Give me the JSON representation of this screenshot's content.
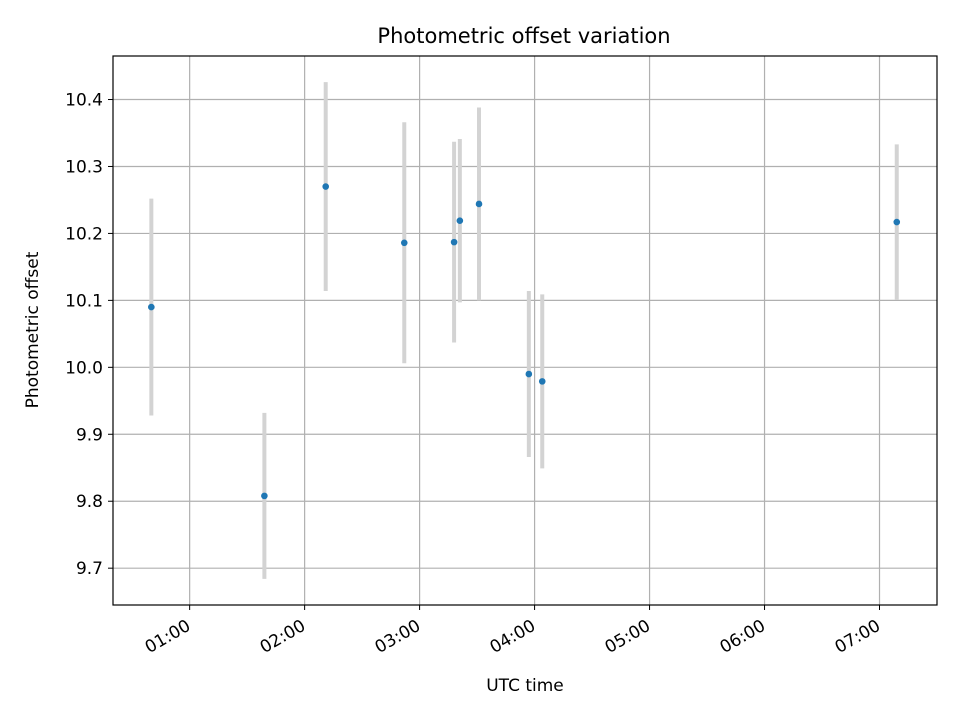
{
  "chart_data": {
    "type": "scatter",
    "title": "Photometric offset variation",
    "xlabel": "UTC time",
    "ylabel": "Photometric offset",
    "x_axis": {
      "kind": "time",
      "range": [
        "00:20",
        "07:30"
      ],
      "ticks": [
        "01:00",
        "02:00",
        "03:00",
        "04:00",
        "05:00",
        "06:00",
        "07:00"
      ]
    },
    "y_axis": {
      "range": [
        9.645,
        10.465
      ],
      "ticks": [
        9.7,
        9.8,
        9.9,
        10.0,
        10.1,
        10.2,
        10.3,
        10.4
      ],
      "tick_labels": [
        "9.7",
        "9.8",
        "9.9",
        "10.0",
        "10.1",
        "10.2",
        "10.3",
        "10.4"
      ]
    },
    "grid": true,
    "series": [
      {
        "marker_color": "#1f77b4",
        "errorbar_color": "#d3d3d3",
        "points": [
          {
            "x": "00:40",
            "y": 10.09,
            "err": 0.162
          },
          {
            "x": "01:39",
            "y": 9.808,
            "err": 0.124
          },
          {
            "x": "02:11",
            "y": 10.27,
            "err": 0.156
          },
          {
            "x": "02:52",
            "y": 10.186,
            "err": 0.18
          },
          {
            "x": "03:18",
            "y": 10.187,
            "err": 0.15
          },
          {
            "x": "03:21",
            "y": 10.219,
            "err": 0.122
          },
          {
            "x": "03:31",
            "y": 10.244,
            "err": 0.144
          },
          {
            "x": "03:57",
            "y": 9.99,
            "err": 0.124
          },
          {
            "x": "04:04",
            "y": 9.979,
            "err": 0.13
          },
          {
            "x": "07:09",
            "y": 10.217,
            "err": 0.116
          }
        ]
      }
    ]
  }
}
